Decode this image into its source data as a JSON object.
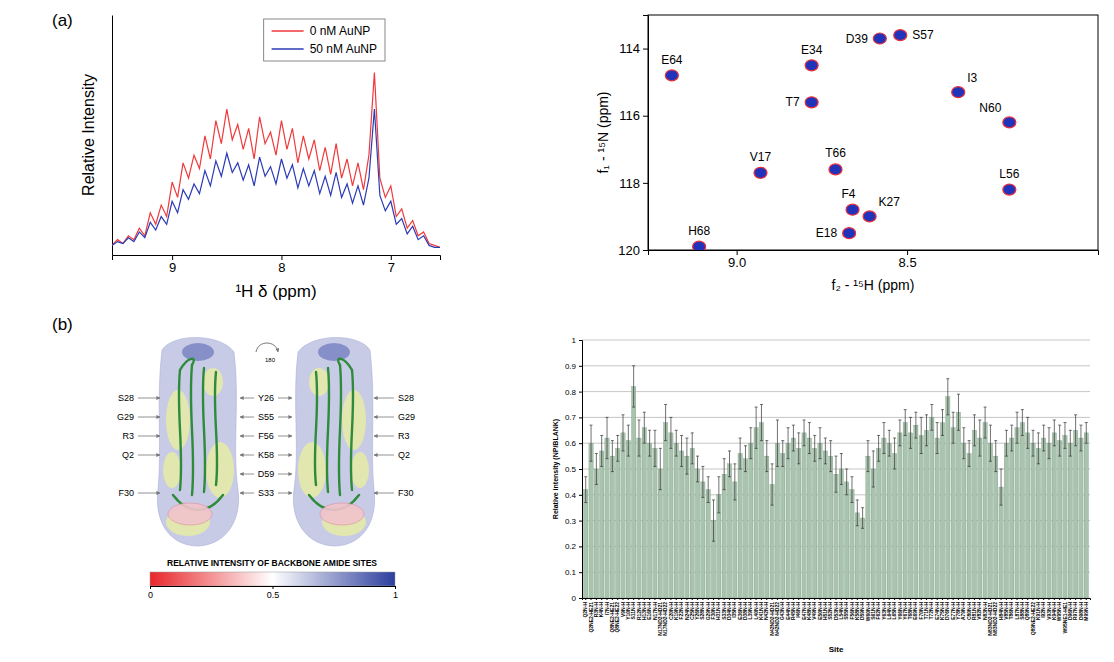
{
  "panel_labels": [
    "(a)",
    "(b)"
  ],
  "chart_data": [
    {
      "type": "line",
      "xlabel": "¹H δ (ppm)",
      "ylabel": "Relative Intensity",
      "x": [
        9.55,
        9.5,
        9.45,
        9.4,
        9.35,
        9.3,
        9.25,
        9.2,
        9.15,
        9.1,
        9.05,
        9,
        8.95,
        8.9,
        8.85,
        8.8,
        8.75,
        8.7,
        8.65,
        8.6,
        8.55,
        8.5,
        8.45,
        8.4,
        8.35,
        8.3,
        8.25,
        8.2,
        8.15,
        8.1,
        8.05,
        8,
        7.95,
        7.9,
        7.85,
        7.8,
        7.75,
        7.7,
        7.65,
        7.6,
        7.55,
        7.5,
        7.45,
        7.4,
        7.35,
        7.3,
        7.25,
        7.2,
        7.15,
        7.1,
        7.05,
        7,
        6.95,
        6.9,
        6.85,
        6.8,
        6.75,
        6.7,
        6.65,
        6.6,
        6.55
      ],
      "series": [
        {
          "name": "0 nM AuNP",
          "color": "#f0393b",
          "values": [
            0.05,
            0.08,
            0.06,
            0.1,
            0.08,
            0.14,
            0.1,
            0.22,
            0.16,
            0.26,
            0.2,
            0.38,
            0.3,
            0.48,
            0.4,
            0.52,
            0.45,
            0.62,
            0.5,
            0.7,
            0.58,
            0.76,
            0.6,
            0.68,
            0.55,
            0.66,
            0.5,
            0.72,
            0.58,
            0.64,
            0.52,
            0.7,
            0.55,
            0.66,
            0.48,
            0.62,
            0.5,
            0.6,
            0.44,
            0.56,
            0.42,
            0.58,
            0.4,
            0.5,
            0.36,
            0.48,
            0.34,
            0.52,
            0.95,
            0.4,
            0.3,
            0.36,
            0.2,
            0.24,
            0.14,
            0.18,
            0.1,
            0.12,
            0.06,
            0.05,
            0.04
          ]
        },
        {
          "name": "50 nM AuNP",
          "color": "#2b3bb5",
          "values": [
            0.05,
            0.07,
            0.06,
            0.09,
            0.07,
            0.12,
            0.09,
            0.17,
            0.13,
            0.2,
            0.16,
            0.28,
            0.22,
            0.34,
            0.29,
            0.37,
            0.32,
            0.44,
            0.36,
            0.49,
            0.41,
            0.53,
            0.43,
            0.48,
            0.39,
            0.47,
            0.36,
            0.51,
            0.41,
            0.46,
            0.37,
            0.5,
            0.4,
            0.47,
            0.35,
            0.45,
            0.36,
            0.44,
            0.32,
            0.41,
            0.31,
            0.43,
            0.3,
            0.37,
            0.27,
            0.36,
            0.26,
            0.4,
            0.76,
            0.31,
            0.23,
            0.28,
            0.16,
            0.19,
            0.11,
            0.15,
            0.08,
            0.1,
            0.05,
            0.04,
            0.04
          ]
        }
      ],
      "xlim": [
        9.55,
        6.55
      ],
      "xticks": [
        9,
        8,
        7
      ],
      "ylim": [
        0,
        1.25
      ],
      "tick_labels": "x",
      "legend": "top-right"
    },
    {
      "type": "scatter",
      "xlabel": "f₂ - ¹⁵H (ppm)",
      "ylabel": "f₁ - ¹⁵N (ppm)",
      "x": [
        9.19,
        8.78,
        8.58,
        8.52,
        8.35,
        8.78,
        8.2,
        8.93,
        8.71,
        8.2,
        8.66,
        8.61,
        8.67,
        9.11
      ],
      "y": [
        114.8,
        114.5,
        113.7,
        113.6,
        115.3,
        115.6,
        116.2,
        117.7,
        117.6,
        118.2,
        118.8,
        119.0,
        119.5,
        119.9
      ],
      "labels": [
        "E64",
        "E34",
        "D39",
        "S57",
        "I3",
        "T7",
        "N60",
        "V17",
        "T66",
        "L56",
        "F4",
        "K27",
        "E18",
        "H68"
      ],
      "color": "#2233bb",
      "xlim": [
        9.26,
        7.94
      ],
      "xticks": [
        {
          "value": 9,
          "label": "9.0"
        },
        8.5
      ],
      "ylim": [
        113,
        120
      ],
      "yticks": [
        114,
        116,
        118,
        120
      ]
    },
    {
      "type": "bar",
      "xlabel": "Site",
      "ylabel": "Relative intensity (NP/BLANK)",
      "categories": [
        "Q2N-H",
        "Q2NE2-HE21",
        "R3N-H",
        "K4N-H",
        "I7N-H",
        "Q8NE2-HE21",
        "Q8NE2-HE22",
        "V9N-H",
        "Y10N-H",
        "S11N-H",
        "R12N-H",
        "H13N-H",
        "E16N-H",
        "N17N-H",
        "N17ND2-HD21",
        "N17ND2-HD22",
        "C20N-H",
        "K19N-H",
        "F22N-H",
        "N24N-H",
        "C25N-H",
        "Y26N-H",
        "S28N-H",
        "G29N-H",
        "F30N-H",
        "H31N-H",
        "S33N-H",
        "D34N-H",
        "I35N-H",
        "E36N-H",
        "D38N-H",
        "L39N-H",
        "L40N-H",
        "K41N-H",
        "N42N-H",
        "N42ND2-HD21",
        "N42ND2-HD22",
        "G43N-H",
        "E44N-H",
        "R45N-H",
        "I46N-H",
        "E47N-H",
        "K48N-H",
        "V49N-H",
        "E50N-H",
        "H51N-H",
        "S52N-H",
        "D53N-H",
        "L54N-H",
        "S55N-H",
        "F56N-H",
        "K58N-H",
        "D59N-H",
        "W60N-H",
        "S61N-H",
        "F62N-H",
        "Y63N-H",
        "L64N-H",
        "L65N-H",
        "Y66N-H",
        "Y67N-H",
        "T68N-H",
        "E69N-H",
        "F70N-H",
        "T71N-H",
        "T72N-H",
        "E74N-H",
        "K75N-H",
        "D76N-H",
        "E77N-H",
        "Y78N-H",
        "A79N-H",
        "C80N-H",
        "R81N-H",
        "V82N-H",
        "N83N-H",
        "N83ND2-HD21",
        "N83ND2-HD22",
        "H84N-H",
        "V85N-H",
        "T86N-H",
        "L87N-H",
        "S88N-H",
        "Q89N-H",
        "Q89NE2-HE22",
        "K91N-H",
        "I92N-H",
        "V93N-H",
        "K94N-H",
        "W95N-H",
        "W95NE1-HE1",
        "D96N-H",
        "R97N-H",
        "D98N-H",
        "M99N-H"
      ],
      "values": [
        0.42,
        0.6,
        0.5,
        0.57,
        0.62,
        0.55,
        0.58,
        0.64,
        0.61,
        0.82,
        0.62,
        0.66,
        0.6,
        0.58,
        0.5,
        0.68,
        0.64,
        0.6,
        0.57,
        0.55,
        0.58,
        0.5,
        0.45,
        0.42,
        0.3,
        0.4,
        0.48,
        0.52,
        0.45,
        0.56,
        0.54,
        0.6,
        0.66,
        0.68,
        0.55,
        0.44,
        0.6,
        0.56,
        0.6,
        0.62,
        0.58,
        0.64,
        0.62,
        0.58,
        0.6,
        0.57,
        0.55,
        0.48,
        0.5,
        0.45,
        0.42,
        0.33,
        0.31,
        0.55,
        0.5,
        0.58,
        0.62,
        0.6,
        0.56,
        0.64,
        0.68,
        0.64,
        0.67,
        0.63,
        0.65,
        0.7,
        0.62,
        0.68,
        0.78,
        0.66,
        0.72,
        0.6,
        0.56,
        0.65,
        0.62,
        0.68,
        0.6,
        0.55,
        0.43,
        0.6,
        0.62,
        0.66,
        0.68,
        0.64,
        0.6,
        0.58,
        0.62,
        0.6,
        0.64,
        0.61,
        0.63,
        0.6,
        0.65,
        0.62,
        0.64
      ],
      "errors": [
        0.05,
        0.07,
        0.06,
        0.06,
        0.08,
        0.06,
        0.05,
        0.07,
        0.06,
        0.08,
        0.07,
        0.06,
        0.05,
        0.07,
        0.08,
        0.07,
        0.06,
        0.05,
        0.06,
        0.07,
        0.06,
        0.05,
        0.06,
        0.05,
        0.08,
        0.07,
        0.06,
        0.05,
        0.07,
        0.06,
        0.05,
        0.06,
        0.08,
        0.07,
        0.06,
        0.08,
        0.09,
        0.05,
        0.06,
        0.05,
        0.06,
        0.05,
        0.06,
        0.05,
        0.06,
        0.05,
        0.06,
        0.07,
        0.06,
        0.05,
        0.05,
        0.05,
        0.04,
        0.06,
        0.07,
        0.05,
        0.06,
        0.05,
        0.06,
        0.05,
        0.05,
        0.06,
        0.05,
        0.07,
        0.06,
        0.05,
        0.06,
        0.05,
        0.07,
        0.06,
        0.07,
        0.06,
        0.05,
        0.06,
        0.07,
        0.06,
        0.07,
        0.06,
        0.07,
        0.05,
        0.05,
        0.06,
        0.05,
        0.06,
        0.05,
        0.06,
        0.05,
        0.06,
        0.05,
        0.06,
        0.05,
        0.05,
        0.06,
        0.05,
        0.04
      ],
      "color": "#a9c4ae",
      "ylim": [
        0,
        1
      ],
      "yticks": [
        0,
        0.1,
        0.2,
        0.3,
        0.4,
        0.5,
        0.6,
        0.7,
        0.8,
        0.9,
        1
      ],
      "grid": true
    }
  ],
  "structure": {
    "rotation_label": "180",
    "labels_left": [
      "S28",
      "G29",
      "R3",
      "Q2",
      "F30"
    ],
    "labels_middle": [
      "Y26",
      "S55",
      "F56",
      "K58",
      "D59",
      "S33"
    ],
    "labels_right": [
      "S28",
      "G29",
      "R3",
      "Q2",
      "F30"
    ],
    "colorbar": {
      "title": "RELATIVE INTENSITY OF BACKBONE AMIDE SITES",
      "range": [
        0,
        1
      ],
      "ticks": [
        0,
        0.5,
        1
      ]
    }
  }
}
